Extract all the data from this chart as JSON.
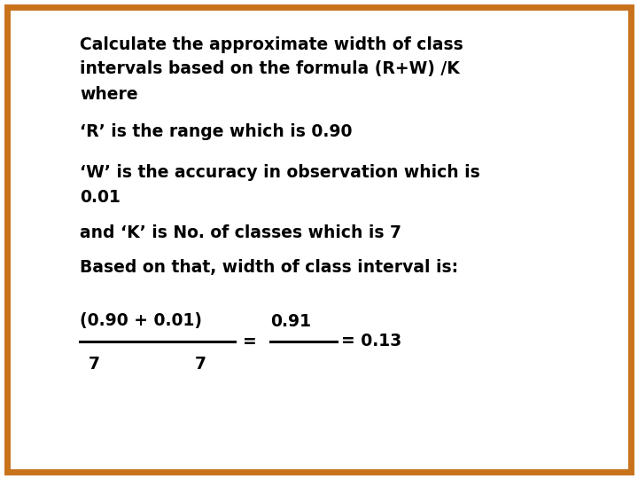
{
  "background_color": "#ffffff",
  "border_color": "#c8721c",
  "border_linewidth": 5,
  "line1": "Calculate the approximate width of class",
  "line2": "intervals based on the formula (R+W) /K",
  "line3": "where",
  "line4": "‘R’ is the range which is 0.90",
  "line5": "‘W’ is the accuracy in observation which is",
  "line6": "0.01",
  "line7": "and ‘K’ is No. of classes which is 7",
  "line8": "Based on that, width of class interval is:",
  "fraction_num_left": "(0.90 + 0.01)",
  "fraction_num_right": "0.91",
  "fraction_denom_left": "7",
  "fraction_denom_right": "7",
  "fraction_equals": "=",
  "fraction_result": "= 0.13",
  "font_size": 13.5,
  "text_color": "#000000",
  "font_weight": "bold"
}
